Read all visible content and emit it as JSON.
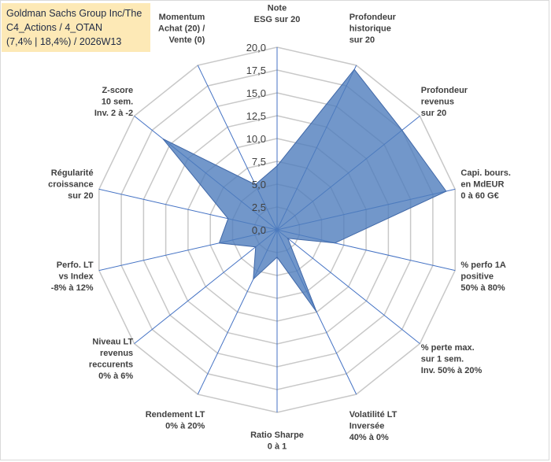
{
  "chart_data": {
    "type": "radar",
    "title_lines": [
      "Goldman Sachs Group Inc/The",
      "C4_Actions / 4_OTAN",
      "(7,4% | 18,4%) / 2026W13"
    ],
    "rmin": 0,
    "rmax": 20,
    "ticks": [
      "0,0",
      "2,5",
      "5,0",
      "7,5",
      "10,0",
      "12,5",
      "15,0",
      "17,5",
      "20,0"
    ],
    "tick_values": [
      0,
      2.5,
      5,
      7.5,
      10,
      12.5,
      15,
      17.5,
      20
    ],
    "series_color": "#4f7dbd",
    "axes": [
      {
        "label": [
          "Note",
          "ESG sur 20"
        ],
        "value": 7.0
      },
      {
        "label": [
          "Profondeur",
          "historique",
          "sur 20"
        ],
        "value": 19.5
      },
      {
        "label": [
          "Profondeur",
          "revenus",
          "sur 20"
        ],
        "value": 17.5
      },
      {
        "label": [
          "Capi. bours.",
          "en MdEUR",
          "0 à 60 G€"
        ],
        "value": 19.0
      },
      {
        "label": [
          "% perfo 1A",
          "positive",
          "50% à 80%"
        ],
        "value": 6.5
      },
      {
        "label": [
          "% perte max.",
          "sur 1 sem.",
          "Inv. 50% à 20%"
        ],
        "value": 1.5
      },
      {
        "label": [
          "Volatilité LT",
          "Inversée",
          "40% à 0%"
        ],
        "value": 10.0
      },
      {
        "label": [
          "Ratio Sharpe",
          "0 à 1"
        ],
        "value": 3.0
      },
      {
        "label": [
          "Rendement LT",
          "0% à 20%"
        ],
        "value": 6.0
      },
      {
        "label": [
          "Niveau LT",
          "revenus",
          "reccurents",
          "0% à 6%"
        ],
        "value": 3.0
      },
      {
        "label": [
          "Perfo. LT",
          "vs Index",
          "-8% à 12%"
        ],
        "value": 6.5
      },
      {
        "label": [
          "Régularité",
          "croissance",
          "sur 20"
        ],
        "value": 5.5
      },
      {
        "label": [
          "Z-score",
          "10 sem.",
          "Inv. 2 à -2"
        ],
        "value": 16.0
      },
      {
        "label": [
          "Momentum",
          "Achat (20) /",
          "Vente (0)"
        ],
        "value": 5.5
      }
    ]
  }
}
